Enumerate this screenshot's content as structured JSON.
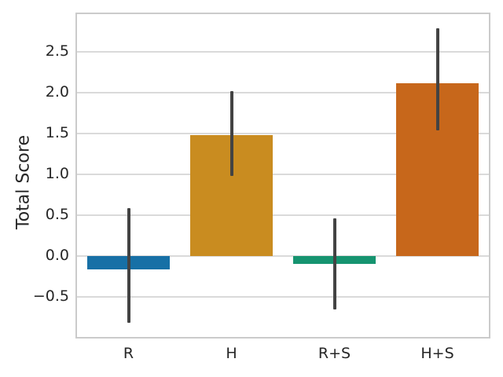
{
  "chart_data": {
    "type": "bar",
    "title": "",
    "xlabel": "",
    "ylabel": "Total Score",
    "categories": [
      "R",
      "H",
      "R+S",
      "H+S"
    ],
    "values": [
      -0.16,
      1.48,
      -0.1,
      2.11
    ],
    "error_bars": {
      "low": [
        -0.82,
        0.98,
        -0.65,
        1.54
      ],
      "high": [
        0.59,
        2.02,
        0.46,
        2.79
      ]
    },
    "bar_colors": [
      "#1770a6",
      "#c98c20",
      "#169470",
      "#c7671b"
    ],
    "errorbar_color": "#434343",
    "ylim": [
      -0.99,
      2.96
    ],
    "yticks": [
      -0.5,
      0.0,
      0.5,
      1.0,
      1.5,
      2.0,
      2.5
    ],
    "ytick_labels": [
      "−0.5",
      "0.0",
      "0.5",
      "1.0",
      "1.5",
      "2.0",
      "2.5"
    ],
    "grid": true,
    "grid_color": "#dadada",
    "spine_color": "#cbcbcb",
    "background_color": "#ffffff",
    "text_color": "#262626",
    "legend": null
  }
}
